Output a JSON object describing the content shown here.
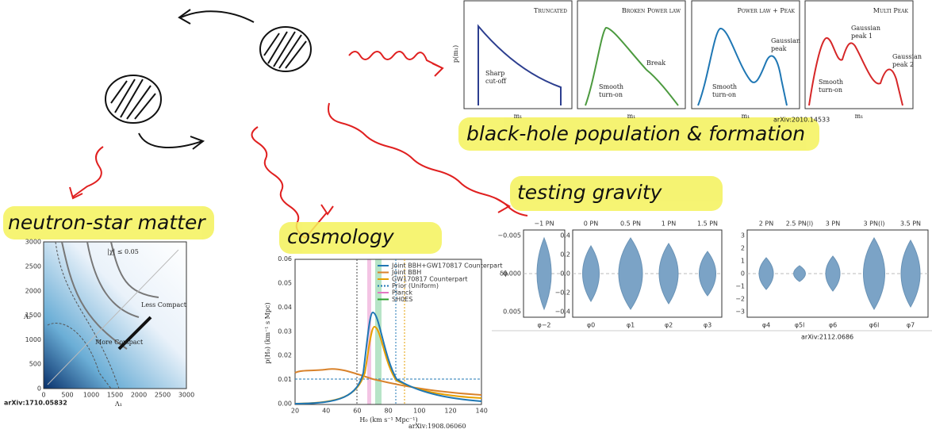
{
  "handwritten": {
    "population": "black-hole population & formation",
    "neutron_star": "neutron-star matter",
    "cosmology": "cosmology",
    "gravity": "testing gravity"
  },
  "population_figure": {
    "y_label": "p(m₁)",
    "reference": "arXiv:2010.14533",
    "panels": [
      {
        "title": "Truncated",
        "x_label": "m₁",
        "annotations": [
          [
            "Sharp",
            "cut-off"
          ]
        ]
      },
      {
        "title": "Broken Power law",
        "x_label": "m₁",
        "annotations": [
          [
            "Break"
          ],
          [
            "Smooth",
            "turn-on"
          ]
        ]
      },
      {
        "title": "Power law + Peak",
        "x_label": "m₁",
        "annotations": [
          [
            "Gaussian",
            "peak"
          ],
          [
            "Smooth",
            "turn-on"
          ]
        ]
      },
      {
        "title": "Multi Peak",
        "x_label": "m₁",
        "annotations": [
          [
            "Gaussian",
            "peak 1"
          ],
          [
            "Gaussian",
            "peak 2"
          ],
          [
            "Smooth",
            "turn-on"
          ]
        ]
      }
    ]
  },
  "neutron_star_figure": {
    "y_label": "Λ₂",
    "x_label": "Λ₁",
    "spin_note": "|χ| ≤ 0.05",
    "less_compact": "Less Compact",
    "more_compact": "More Compact",
    "reference": "arXiv:1710.05832",
    "yticks": [
      "0",
      "500",
      "1000",
      "1500",
      "2000",
      "2500",
      "3000"
    ],
    "xticks": [
      "0",
      "500",
      "1000",
      "1500",
      "2000",
      "2500",
      "3000"
    ]
  },
  "cosmology_figure": {
    "y_label": "p(H₀) (km⁻¹ s Mpc)",
    "x_label": "H₀ (km s⁻¹ Mpc⁻¹)",
    "reference": "arXiv:1908.06060",
    "yticks": [
      "0.00",
      "0.01",
      "0.02",
      "0.03",
      "0.04",
      "0.05",
      "0.06"
    ],
    "xticks": [
      "20",
      "40",
      "60",
      "80",
      "100",
      "120",
      "140"
    ],
    "legend": [
      {
        "name": "Joint BBH+GW170817 Counterpart",
        "color": "#1f77b4"
      },
      {
        "name": "Joint BBH",
        "color": "#d9822b"
      },
      {
        "name": "GW170817 Counterpart",
        "color": "#e69f00"
      },
      {
        "name": "Prior (Uniform)",
        "color": "#1f77b4"
      },
      {
        "name": "Planck",
        "color": "#e377c2"
      },
      {
        "name": "SH0ES",
        "color": "#2ca02c"
      }
    ]
  },
  "gravity_figure": {
    "y_label": "δφ̂ᵢ",
    "reference": "arXiv:2112.0686",
    "panels": [
      {
        "yticks": [
          "−0.005",
          "0.000",
          "0.005"
        ],
        "top": [
          "−1 PN"
        ],
        "bottom": [
          "φ−2"
        ]
      },
      {
        "yticks": [
          "0.4",
          "0.2",
          "0.0",
          "−0.2",
          "−0.4"
        ],
        "top": [
          "0 PN",
          "0.5 PN",
          "1 PN",
          "1.5 PN"
        ],
        "bottom": [
          "φ0",
          "φ1",
          "φ2",
          "φ3"
        ]
      },
      {
        "yticks": [
          "3",
          "2",
          "1",
          "0",
          "−1",
          "−2",
          "−3"
        ],
        "top": [
          "2 PN",
          "2.5 PN(l)",
          "3 PN",
          "3 PN(l)",
          "3.5 PN"
        ],
        "bottom": [
          "φ4",
          "φ5l",
          "φ6",
          "φ6l",
          "φ7"
        ]
      }
    ]
  }
}
